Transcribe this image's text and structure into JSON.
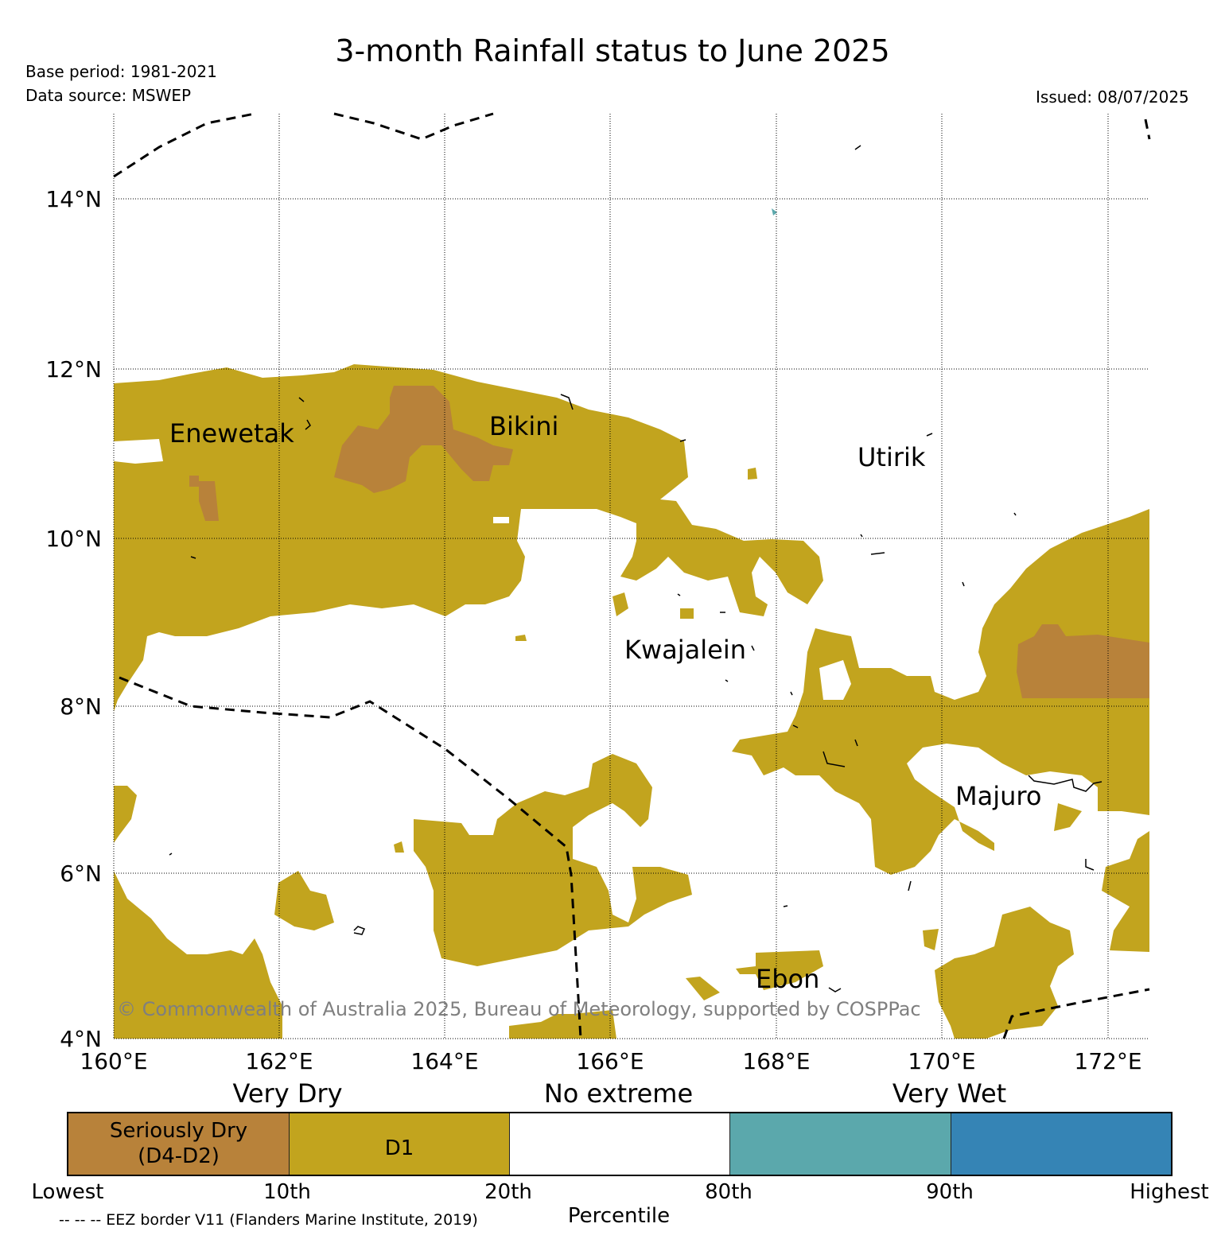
{
  "title": "3-month Rainfall status to June 2025",
  "base_period": "Base period: 1981-2021",
  "data_source": "Data source: MSWEP",
  "issued": "Issued: 08/07/2025",
  "copyright": "© Commonwealth of Australia 2025, Bureau of Meteorology, supported by COSPPac",
  "lat_labels": [
    "14°N",
    "12°N",
    "10°N",
    "8°N",
    "6°N",
    "4°N"
  ],
  "lon_labels": [
    "160°E",
    "162°E",
    "164°E",
    "166°E",
    "168°E",
    "170°E",
    "172°E"
  ],
  "places": {
    "enewetak": "Enewetak",
    "bikini": "Bikini",
    "utirik": "Utirik",
    "kwajalein": "Kwajalein",
    "majuro": "Majuro",
    "ebon": "Ebon"
  },
  "legend": {
    "categories": {
      "very_dry": "Very Dry",
      "no_extreme": "No extreme",
      "very_wet": "Very Wet"
    },
    "segments": [
      {
        "label_line1": "Seriously Dry",
        "label_line2": "(D4-D2)",
        "color": "#b8823a"
      },
      {
        "label_line1": "D1",
        "label_line2": "",
        "color": "#c2a41e"
      },
      {
        "label_line1": "",
        "label_line2": "",
        "color": "#ffffff"
      },
      {
        "label_line1": "",
        "label_line2": "",
        "color": "#5ba8ac"
      },
      {
        "label_line1": "",
        "label_line2": "",
        "color": "#3584b5"
      }
    ],
    "percentiles": [
      "Lowest",
      "10th",
      "20th",
      "80th",
      "90th",
      "Highest"
    ],
    "axis_title": "Percentile"
  },
  "footnote": "-- -- -- EEZ border V11 (Flanders Marine Institute, 2019)",
  "colors": {
    "seriously_dry": "#b8823a",
    "d1": "#c2a41e",
    "very_wet_80_90": "#5ba8ac",
    "very_wet_90_plus": "#3584b5"
  }
}
